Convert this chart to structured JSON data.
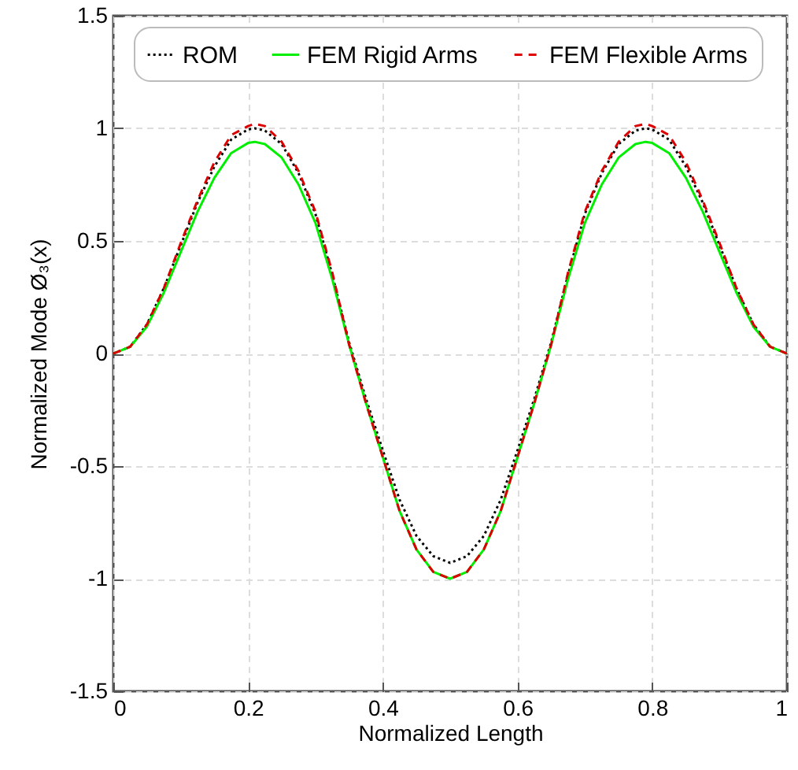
{
  "chart_data": {
    "type": "line",
    "xlabel": "Normalized Length",
    "ylabel": "Normalized Mode Ø₃(x)",
    "x": [
      0,
      0.025,
      0.05,
      0.075,
      0.1,
      0.125,
      0.15,
      0.175,
      0.2,
      0.21,
      0.225,
      0.25,
      0.275,
      0.3,
      0.325,
      0.35,
      0.375,
      0.4,
      0.425,
      0.45,
      0.475,
      0.5,
      0.525,
      0.55,
      0.575,
      0.6,
      0.625,
      0.65,
      0.675,
      0.7,
      0.725,
      0.75,
      0.775,
      0.79,
      0.8,
      0.825,
      0.85,
      0.875,
      0.9,
      0.925,
      0.95,
      0.975,
      1
    ],
    "series": [
      {
        "name": "ROM",
        "color": "#000000",
        "line_style": "dotted",
        "values": [
          0,
          0.03,
          0.13,
          0.29,
          0.48,
          0.67,
          0.83,
          0.95,
          0.995,
          1.0,
          0.99,
          0.93,
          0.8,
          0.62,
          0.35,
          0.05,
          -0.2,
          -0.43,
          -0.65,
          -0.81,
          -0.9,
          -0.93,
          -0.9,
          -0.81,
          -0.65,
          -0.43,
          -0.2,
          0.05,
          0.35,
          0.62,
          0.8,
          0.93,
          0.99,
          1.0,
          0.995,
          0.95,
          0.83,
          0.67,
          0.48,
          0.29,
          0.13,
          0.03,
          0
        ]
      },
      {
        "name": "FEM Rigid Arms",
        "color": "#00ee00",
        "line_style": "solid",
        "values": [
          0,
          0.03,
          0.12,
          0.27,
          0.45,
          0.63,
          0.78,
          0.89,
          0.935,
          0.94,
          0.93,
          0.87,
          0.75,
          0.58,
          0.33,
          0.04,
          -0.22,
          -0.46,
          -0.7,
          -0.87,
          -0.97,
          -1.0,
          -0.97,
          -0.87,
          -0.7,
          -0.46,
          -0.22,
          0.04,
          0.33,
          0.58,
          0.75,
          0.87,
          0.93,
          0.94,
          0.935,
          0.89,
          0.78,
          0.63,
          0.45,
          0.27,
          0.12,
          0.03,
          0
        ]
      },
      {
        "name": "FEM Flexible Arms",
        "color": "#dd0000",
        "line_style": "dashed",
        "values": [
          0,
          0.03,
          0.13,
          0.29,
          0.49,
          0.68,
          0.85,
          0.97,
          1.01,
          1.02,
          1.01,
          0.94,
          0.81,
          0.63,
          0.36,
          0.04,
          -0.22,
          -0.46,
          -0.7,
          -0.87,
          -0.97,
          -1.0,
          -0.97,
          -0.87,
          -0.7,
          -0.46,
          -0.22,
          0.04,
          0.36,
          0.63,
          0.81,
          0.94,
          1.01,
          1.02,
          1.01,
          0.97,
          0.85,
          0.68,
          0.49,
          0.29,
          0.13,
          0.03,
          0
        ]
      }
    ],
    "xlim": [
      0,
      1
    ],
    "xticks": [
      0,
      0.2,
      0.4,
      0.6,
      0.8,
      1
    ],
    "ylim": [
      -1.5,
      1.5
    ],
    "yticks": [
      -1.5,
      -1,
      -0.5,
      0,
      0.5,
      1,
      1.5
    ],
    "grid": true,
    "legend": "top"
  }
}
